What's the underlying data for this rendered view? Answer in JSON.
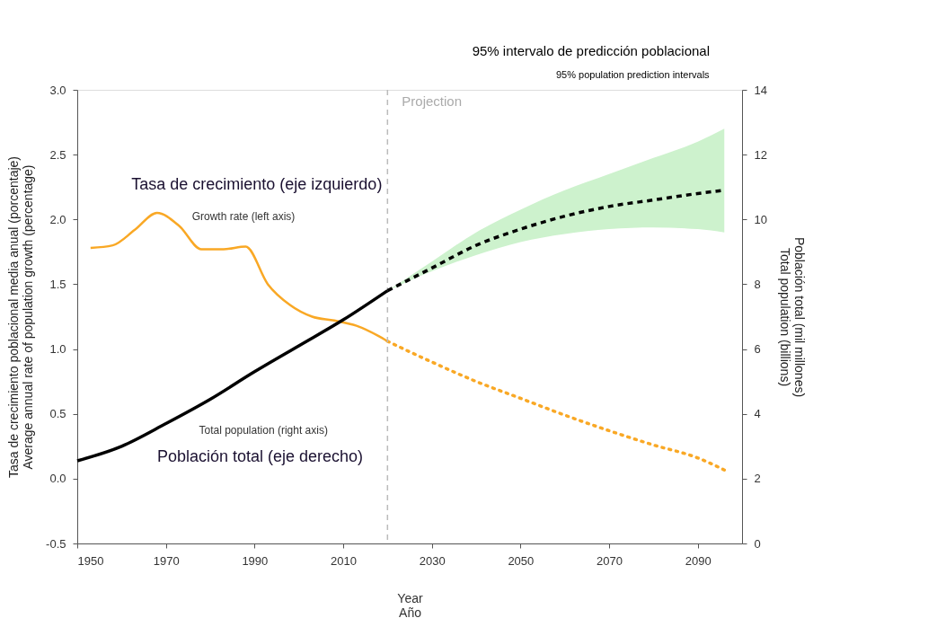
{
  "chart_data": {
    "type": "line",
    "xlabel": "Year\nAño",
    "ylabel": "Tasa de crecimiento poblacional media anual (porcentaje)\nAverage annual rate of population growth (percentage)",
    "y2label": "Población total (mil millones)\nTotal population (billions)",
    "legend_title": "95% intervalo de predicción poblacional",
    "legend": "top right",
    "grid": false,
    "marker": "none",
    "xlim": [
      1950,
      2100
    ],
    "xticks": [
      {
        "value": 1950,
        "label": "1950"
      },
      {
        "value": 1970,
        "label": "1970"
      },
      {
        "value": 1990,
        "label": "1990"
      },
      {
        "value": 2010,
        "label": "2010"
      },
      {
        "value": 2030,
        "label": "2030"
      },
      {
        "value": 2050,
        "label": "2050"
      },
      {
        "value": 2070,
        "label": "2070"
      },
      {
        "value": 2090,
        "label": "2090"
      }
    ],
    "ylim": [
      -0.5,
      3.0
    ],
    "yticks": [
      {
        "value": -0.5,
        "label": "-0.5"
      },
      {
        "value": 0,
        "label": "0.0"
      },
      {
        "value": 0.5,
        "label": "0.5"
      },
      {
        "value": 1,
        "label": "1.0"
      },
      {
        "value": 1.5,
        "label": "1.5"
      },
      {
        "value": 2,
        "label": "2.0"
      },
      {
        "value": 2.5,
        "label": "2.5"
      },
      {
        "value": 3,
        "label": "3.0"
      }
    ],
    "y2lim": [
      0,
      14
    ],
    "y2ticks": [
      0,
      2,
      4,
      6,
      8,
      10,
      12,
      14
    ],
    "series": [
      {
        "color": "#f9a825",
        "line_style": "solid",
        "x": [
          1953,
          1958,
          1963,
          1968,
          1973,
          1978,
          1983,
          1988,
          1993,
          1998,
          2003,
          2008,
          2013,
          2018,
          2020
        ],
        "values": [
          1.78,
          1.8,
          1.92,
          2.05,
          1.95,
          1.77,
          1.77,
          1.79,
          1.5,
          1.34,
          1.25,
          1.22,
          1.18,
          1.1,
          1.06
        ]
      },
      {
        "color": "#f9a825",
        "line_style": "dotted",
        "x": [
          2020,
          2030,
          2040,
          2050,
          2060,
          2070,
          2080,
          2090,
          2097
        ],
        "values": [
          1.06,
          0.9,
          0.75,
          0.62,
          0.49,
          0.37,
          0.26,
          0.16,
          0.05
        ]
      },
      {
        "color": "#000000",
        "line_style": "solid",
        "axis": "y2",
        "x": [
          1950,
          1960,
          1970,
          1980,
          1990,
          2000,
          2010,
          2020
        ],
        "values": [
          2.55,
          3.0,
          3.7,
          4.45,
          5.3,
          6.1,
          6.9,
          7.8
        ]
      },
      {
        "name": "95% population prediction intervals",
        "color": "#000000",
        "line_style": "dashed",
        "axis": "y2",
        "x": [
          2020,
          2030,
          2040,
          2050,
          2060,
          2070,
          2080,
          2090,
          2096
        ],
        "values": [
          7.8,
          8.5,
          9.2,
          9.7,
          10.1,
          10.4,
          10.6,
          10.8,
          10.9
        ],
        "lower": [
          7.8,
          8.4,
          8.9,
          9.3,
          9.55,
          9.7,
          9.75,
          9.7,
          9.6
        ],
        "upper": [
          7.8,
          8.7,
          9.6,
          10.3,
          10.9,
          11.4,
          11.9,
          12.4,
          12.8
        ]
      }
    ],
    "ref_lines": [
      {
        "axis": "x",
        "value": 2020,
        "label": "Projection",
        "color": "#bbbbbb",
        "line_style": "dashed"
      }
    ],
    "annotations": [
      "Tasa de crecimiento (eje izquierdo)",
      "Growth rate (left axis)",
      "Total population (right axis)",
      "Población total (eje derecho)"
    ]
  }
}
